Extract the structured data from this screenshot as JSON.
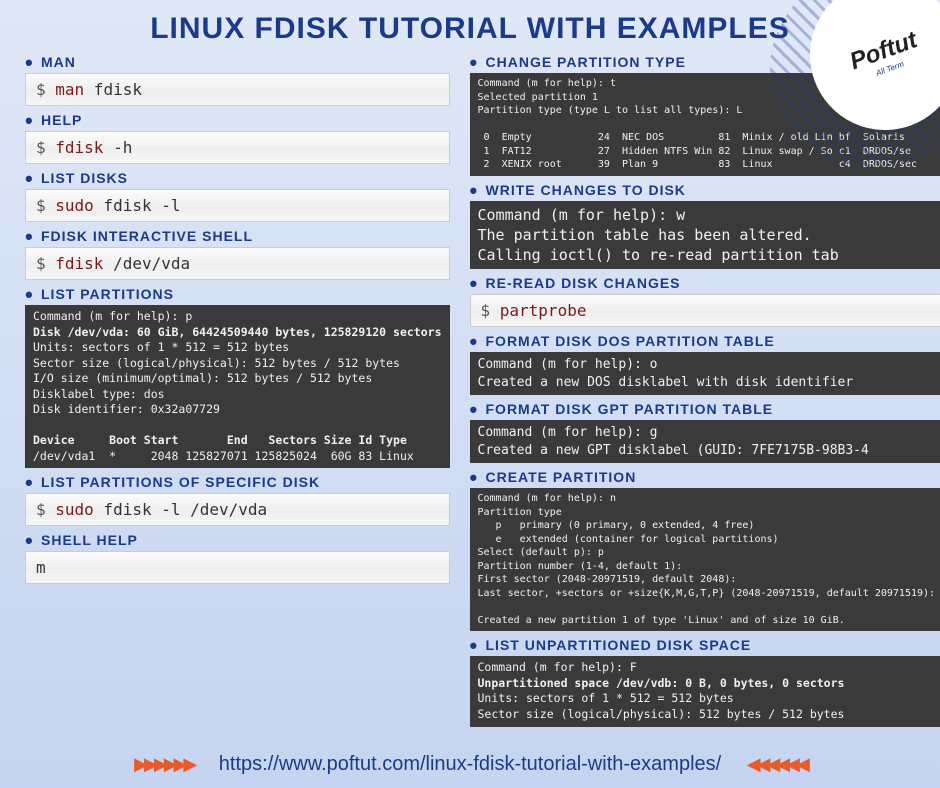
{
  "title": "LINUX FDISK TUTORIAL WITH EXAMPLES",
  "logo": {
    "name": "Poftut",
    "sub": "All Term"
  },
  "left": [
    {
      "heading": "MAN",
      "type": "light",
      "prompt": "$ ",
      "cmd": "man",
      "arg": " fdisk"
    },
    {
      "heading": "HELP",
      "type": "light",
      "prompt": "$ ",
      "cmd": "fdisk",
      "arg": " -h"
    },
    {
      "heading": "LIST DISKS",
      "type": "light",
      "prompt": "$ ",
      "cmd": "sudo",
      "arg": " fdisk -l"
    },
    {
      "heading": "FDISK INTERACTIVE SHELL",
      "type": "light",
      "prompt": "$ ",
      "cmd": "fdisk",
      "arg": " /dev/vda"
    },
    {
      "heading": "LIST PARTITIONS",
      "type": "dark",
      "size": "",
      "body": "Command (m for help): p\n<b>Disk /dev/vda: 60 GiB, 64424509440 bytes, 125829120 sectors</b>\nUnits: sectors of 1 * 512 = 512 bytes\nSector size (logical/physical): 512 bytes / 512 bytes\nI/O size (minimum/optimal): 512 bytes / 512 bytes\nDisklabel type: dos\nDisk identifier: 0x32a07729\n\n<b>Device     Boot Start       End   Sectors Size Id Type</b>\n/dev/vda1  *     2048 125827071 125825024  60G 83 Linux"
    },
    {
      "heading": "LIST PARTITIONS OF SPECIFIC DISK",
      "type": "light",
      "prompt": "$ ",
      "cmd": "sudo",
      "arg": " fdisk -l /dev/vda"
    },
    {
      "heading": "SHELL HELP",
      "type": "light",
      "prompt": "",
      "cmd": "",
      "arg": "m"
    }
  ],
  "right": [
    {
      "heading": "CHANGE PARTITION TYPE",
      "type": "dark",
      "size": "small",
      "body": "Command (m for help): t\nSelected partition 1\nPartition type (type L to list all types): L\n\n 0  Empty           24  NEC DOS         81  Minix / old Lin bf  Solaris \n 1  FAT12           27  Hidden NTFS Win 82  Linux swap / So c1  DRDOS/se\n 2  XENIX root      39  Plan 9          83  Linux           c4  DRDOS/sec"
    },
    {
      "heading": "WRITE CHANGES TO DISK",
      "type": "dark",
      "size": "big",
      "body": "Command (m for help): w\nThe partition table has been altered.\nCalling ioctl() to re-read partition tab"
    },
    {
      "heading": "RE-READ DISK CHANGES",
      "type": "light",
      "prompt": "$ ",
      "cmd": "partprobe",
      "arg": ""
    },
    {
      "heading": "FORMAT DISK DOS PARTITION TABLE",
      "type": "dark",
      "size": "med",
      "body": "Command (m for help): o\nCreated a new DOS disklabel with disk identifier "
    },
    {
      "heading": "FORMAT DISK GPT PARTITION TABLE",
      "type": "dark",
      "size": "med",
      "body": "Command (m for help): g\nCreated a new GPT disklabel (GUID: 7FE7175B-98B3-4"
    },
    {
      "heading": "CREATE PARTITION",
      "type": "dark",
      "size": "small",
      "body": "Command (m for help): n\nPartition type\n   p   primary (0 primary, 0 extended, 4 free)\n   e   extended (container for logical partitions)\nSelect (default p): p\nPartition number (1-4, default 1):\nFirst sector (2048-20971519, default 2048):\nLast sector, +sectors or +size{K,M,G,T,P} (2048-20971519, default 20971519):\n\nCreated a new partition 1 of type 'Linux' and of size 10 GiB."
    },
    {
      "heading": "LIST UNPARTITIONED DISK SPACE",
      "type": "dark",
      "size": "",
      "body": "Command (m for help): F\n<b>Unpartitioned space /dev/vdb: 0 B, 0 bytes, 0 sectors</b>\nUnits: sectors of 1 * 512 = 512 bytes\nSector size (logical/physical): 512 bytes / 512 bytes"
    }
  ],
  "footer": {
    "arrows_left": "▶▶▶▶▶▶",
    "url": "https://www.poftut.com/linux-fdisk-tutorial-with-examples/",
    "arrows_right": "◀◀◀◀◀◀"
  }
}
